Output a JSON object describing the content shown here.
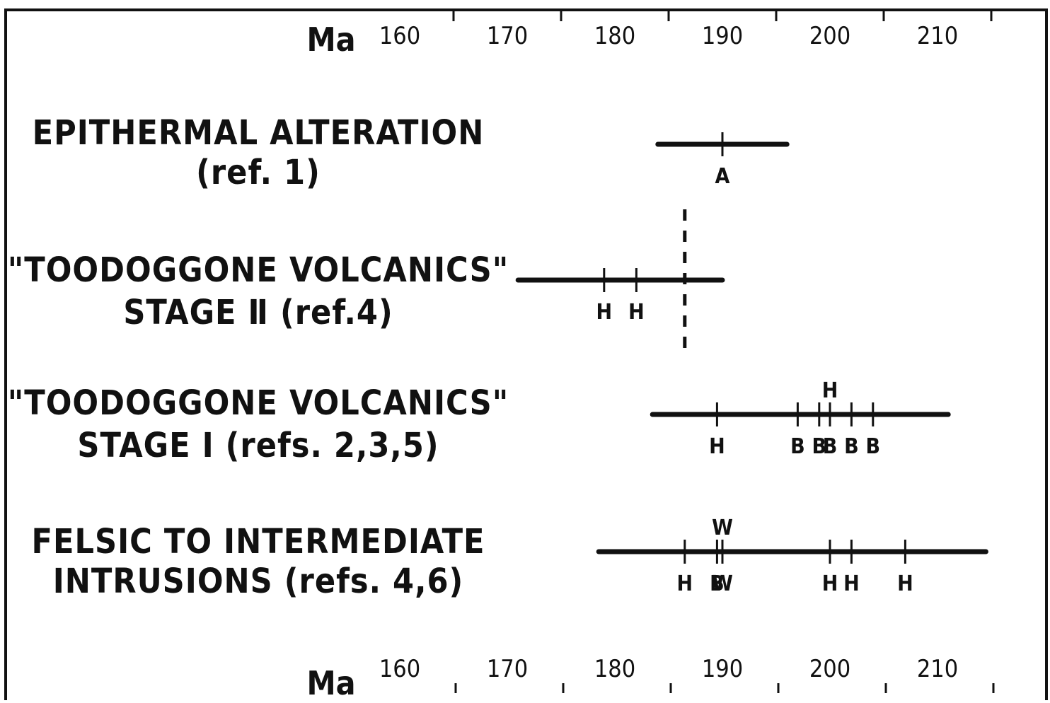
{
  "chart_data": {
    "type": "range",
    "axis": {
      "unit": "Ma",
      "xlim": [
        153,
        215
      ],
      "ticks": [
        {
          "value": 160,
          "label": "160"
        },
        {
          "value": 170,
          "label": "170"
        },
        {
          "value": 180,
          "label": "180"
        },
        {
          "value": 190,
          "label": "190"
        },
        {
          "value": 200,
          "label": "200"
        },
        {
          "value": 210,
          "label": "210"
        }
      ],
      "minor_ticks": [
        165,
        175,
        185,
        195,
        205,
        215
      ],
      "positions": [
        "top",
        "bottom"
      ]
    },
    "rows": [
      {
        "label_lines": [
          "EPITHERMAL ALTERATION",
          "(ref. 1)"
        ],
        "range": [
          184,
          196
        ],
        "points": [
          {
            "value": 190,
            "below": "A",
            "above": ""
          }
        ]
      },
      {
        "label_lines": [
          "\"TOODOGGONE VOLCANICS\"",
          "STAGE Ⅱ (ref.4)"
        ],
        "range": [
          171,
          190
        ],
        "points": [
          {
            "value": 179,
            "below": "H",
            "above": ""
          },
          {
            "value": 182,
            "below": "H",
            "above": ""
          }
        ],
        "dashed_marker": 186.5
      },
      {
        "label_lines": [
          "\"TOODOGGONE VOLCANICS\"",
          "STAGE Ⅰ (refs. 2,3,5)"
        ],
        "range": [
          183.5,
          211
        ],
        "points": [
          {
            "value": 189.5,
            "below": "H",
            "above": ""
          },
          {
            "value": 197,
            "below": "B",
            "above": ""
          },
          {
            "value": 199,
            "below": "B",
            "above": ""
          },
          {
            "value": 200,
            "below": "B",
            "above": "H"
          },
          {
            "value": 202,
            "below": "B",
            "above": ""
          },
          {
            "value": 204,
            "below": "B",
            "above": ""
          }
        ]
      },
      {
        "label_lines": [
          "FELSIC TO INTERMEDIATE",
          "INTRUSIONS (refs. 4,6)"
        ],
        "range": [
          178.5,
          214.5
        ],
        "points": [
          {
            "value": 186.5,
            "below": "H",
            "above": ""
          },
          {
            "value": 189.5,
            "below": "B",
            "above": ""
          },
          {
            "value": 190,
            "below": "W",
            "above": "W"
          },
          {
            "value": 200,
            "below": "H",
            "above": ""
          },
          {
            "value": 202,
            "below": "H",
            "above": ""
          },
          {
            "value": 207,
            "below": "H",
            "above": ""
          }
        ]
      }
    ]
  }
}
